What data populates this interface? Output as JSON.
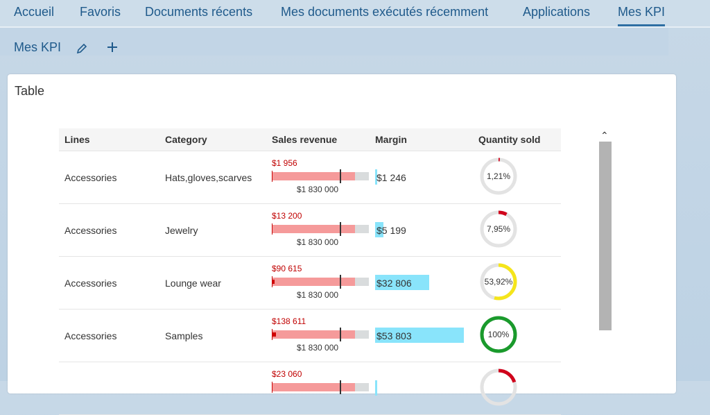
{
  "tabs": [
    {
      "label": "Accueil"
    },
    {
      "label": "Favoris"
    },
    {
      "label": "Documents récents"
    },
    {
      "label": "Mes documents exécutés récemment"
    },
    {
      "label": "Applications"
    },
    {
      "label": "Mes KPI"
    }
  ],
  "subbar": {
    "title": "Mes KPI",
    "edit_icon": "pencil-icon",
    "add_icon": "plus-icon"
  },
  "card": {
    "title": "Table"
  },
  "table": {
    "headers": [
      "Lines",
      "Category",
      "Sales revenue",
      "Margin",
      "Quantity sold"
    ],
    "rows": [
      {
        "line": "Accessories",
        "category": "Hats,gloves,scarves",
        "revenue": "$1 956",
        "goal": "$1 830 000",
        "revenue_fraction": 0.001,
        "margin": "$1 246",
        "margin_fraction": 0.02,
        "qty": "1,21%",
        "qty_fraction": 0.0121,
        "qty_color": "#d0021b"
      },
      {
        "line": "Accessories",
        "category": "Jewelry",
        "revenue": "$13 200",
        "goal": "$1 830 000",
        "revenue_fraction": 0.007,
        "margin": "$5 199",
        "margin_fraction": 0.09,
        "qty": "7,95%",
        "qty_fraction": 0.0795,
        "qty_color": "#d0021b"
      },
      {
        "line": "Accessories",
        "category": "Lounge wear",
        "revenue": "$90 615",
        "goal": "$1 830 000",
        "revenue_fraction": 0.05,
        "margin": "$32 806",
        "margin_fraction": 0.59,
        "qty": "53,92%",
        "qty_fraction": 0.5392,
        "qty_color": "#f5e51b"
      },
      {
        "line": "Accessories",
        "category": "Samples",
        "revenue": "$138 611",
        "goal": "$1 830 000",
        "revenue_fraction": 0.076,
        "margin": "$53 803",
        "margin_fraction": 0.97,
        "qty": "100%",
        "qty_fraction": 1.0,
        "qty_color": "#1a9a2c"
      },
      {
        "line": "",
        "category": "",
        "revenue": "$23 060",
        "goal": "",
        "revenue_fraction": 0.013,
        "margin": "",
        "margin_fraction": 0.02,
        "qty": "",
        "qty_fraction": 0.2,
        "qty_color": "#d0021b"
      }
    ]
  },
  "scroll_up_icon": "caret-up-icon"
}
